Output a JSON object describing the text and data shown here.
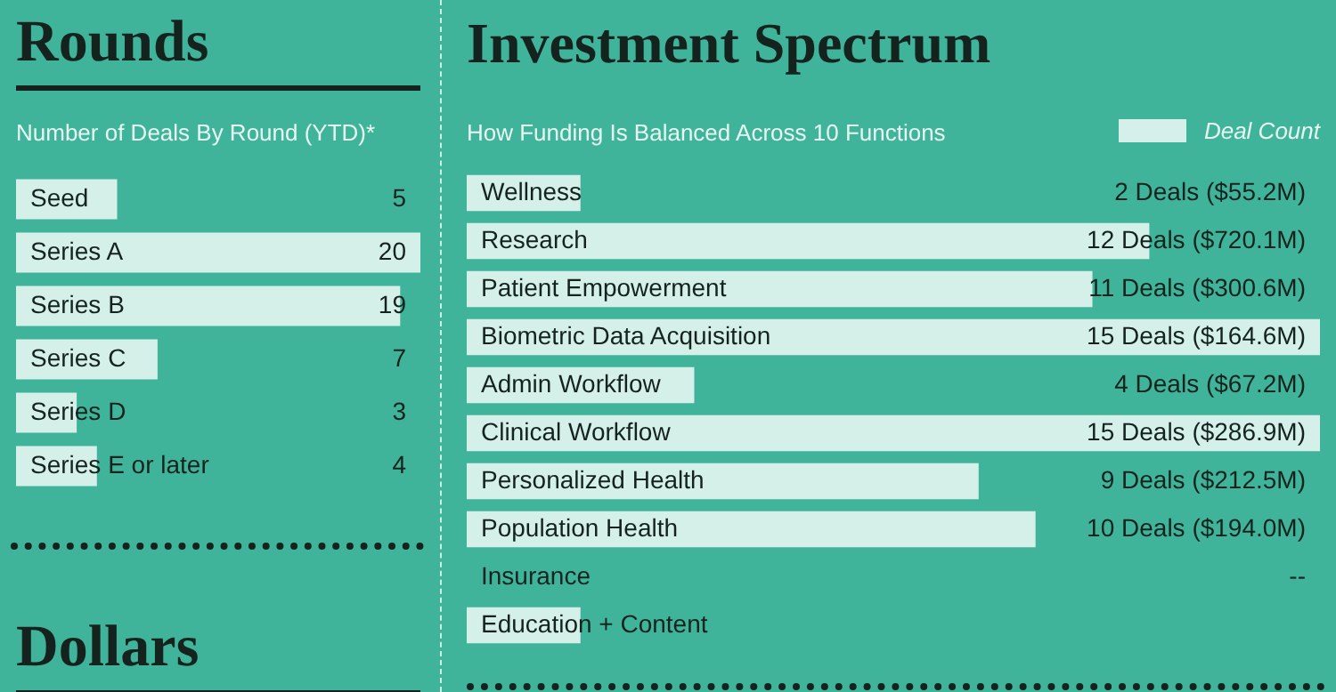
{
  "chart_data": [
    {
      "type": "bar",
      "title": "Rounds",
      "subtitle": "Number of Deals By Round (YTD)*",
      "orientation": "horizontal",
      "categories": [
        "Seed",
        "Series A",
        "Series B",
        "Series C",
        "Series D",
        "Series E or later"
      ],
      "values": [
        5,
        20,
        19,
        7,
        3,
        4
      ],
      "color": "#d5efe9",
      "data_labels": true
    },
    {
      "type": "bar",
      "title": "Investment Spectrum",
      "subtitle": "How Funding Is Balanced Across 10 Functions",
      "orientation": "horizontal",
      "categories": [
        "Wellness",
        "Research",
        "Patient Empowerment",
        "Biometric Data Acquisition",
        "Admin Workflow",
        "Clinical Workflow",
        "Personalized Health",
        "Population Health",
        "Insurance",
        "Education + Content"
      ],
      "series": [
        {
          "name": "Deal Count",
          "color": "#d5efe9",
          "values": [
            2,
            12,
            11,
            15,
            4,
            15,
            9,
            10,
            null,
            2
          ],
          "value_labels": [
            "2 Deals ($55.2M)",
            "12 Deals ($720.1M)",
            "11 Deals ($300.6M)",
            "15 Deals ($164.6M)",
            "4 Deals ($67.2M)",
            "15 Deals ($286.9M)",
            "9 Deals ($212.5M)",
            "10 Deals ($194.0M)",
            "--",
            null
          ]
        }
      ],
      "legend": "top right"
    },
    {
      "type": "other",
      "title": "Dollars"
    }
  ]
}
